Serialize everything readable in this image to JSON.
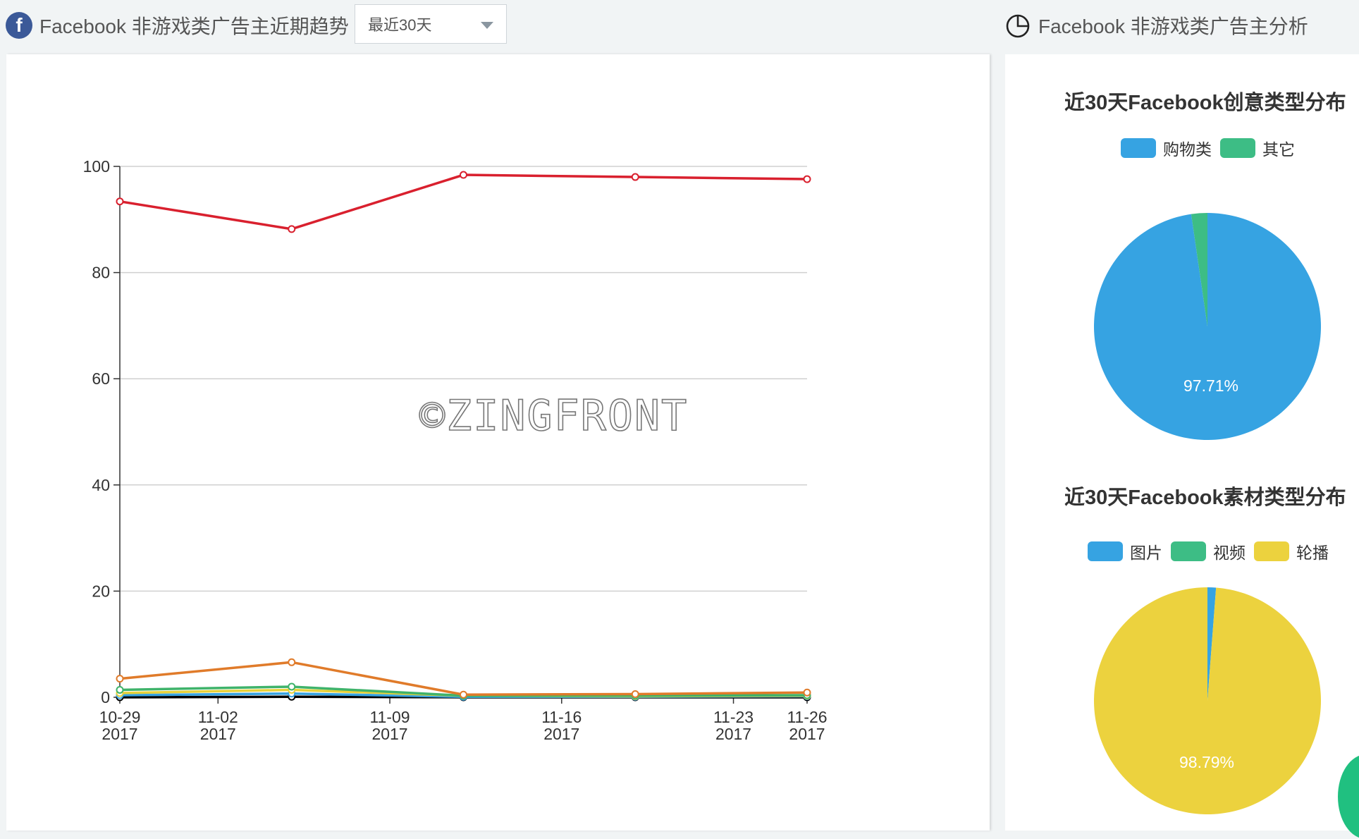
{
  "header": {
    "left_title": "Facebook 非游戏类广告主近期趋势",
    "range_select": "最近30天",
    "right_title": "Facebook 非游戏类广告主分析",
    "fb_glyph": "f"
  },
  "watermark": "©ZINGFRONT",
  "chart_data": [
    {
      "type": "line",
      "x": [
        "10-29\n2017",
        "",
        "",
        "",
        "11-26\n2017"
      ],
      "xticks": [
        {
          "label1": "10-29",
          "label2": "2017",
          "day": 0
        },
        {
          "label1": "11-02",
          "label2": "2017",
          "day": 4
        },
        {
          "label1": "11-09",
          "label2": "2017",
          "day": 11
        },
        {
          "label1": "11-16",
          "label2": "2017",
          "day": 18
        },
        {
          "label1": "11-23",
          "label2": "2017",
          "day": 25
        },
        {
          "label1": "11-26",
          "label2": "2017",
          "day": 28
        }
      ],
      "point_days": [
        0,
        7,
        14,
        21,
        28
      ],
      "yticks": [
        "0",
        "20",
        "40",
        "60",
        "80",
        "100"
      ],
      "ylim": [
        0,
        100
      ],
      "grid": true,
      "series": [
        {
          "color": "#d9202e",
          "values": [
            93.4,
            88.2,
            98.4,
            98.0,
            97.6
          ]
        },
        {
          "color": "#e07b2a",
          "values": [
            3.5,
            6.6,
            0.5,
            0.6,
            0.9
          ]
        },
        {
          "color": "#3fb36a",
          "values": [
            1.4,
            2.0,
            0.3,
            0.3,
            0.4
          ]
        },
        {
          "color": "#e8d23a",
          "values": [
            0.8,
            1.4,
            0.3,
            0.2,
            0.3
          ]
        },
        {
          "color": "#36a3e2",
          "values": [
            0.4,
            0.7,
            0.1,
            0.1,
            0.2
          ]
        },
        {
          "color": "#000000",
          "values": [
            0.0,
            0.1,
            0.0,
            0.0,
            0.0
          ]
        }
      ]
    },
    {
      "type": "pie",
      "title": "近30天Facebook创意类型分布",
      "legend": [
        {
          "name": "购物类",
          "color": "#36a3e2"
        },
        {
          "name": "其它",
          "color": "#3dbd85"
        }
      ],
      "slices": [
        {
          "name": "购物类",
          "value": 97.71,
          "color": "#36a3e2",
          "label": "97.71%"
        },
        {
          "name": "其它",
          "value": 2.29,
          "color": "#3dbd85",
          "label": ""
        }
      ]
    },
    {
      "type": "pie",
      "title": "近30天Facebook素材类型分布",
      "legend": [
        {
          "name": "图片",
          "color": "#36a3e2"
        },
        {
          "name": "视频",
          "color": "#3dbd85"
        },
        {
          "name": "轮播",
          "color": "#ecd23e"
        }
      ],
      "slices": [
        {
          "name": "图片",
          "value": 1.21,
          "color": "#36a3e2",
          "label": ""
        },
        {
          "name": "视频",
          "value": 0.0,
          "color": "#3dbd85",
          "label": ""
        },
        {
          "name": "轮播",
          "value": 98.79,
          "color": "#ecd23e",
          "label": "98.79%"
        }
      ]
    }
  ]
}
